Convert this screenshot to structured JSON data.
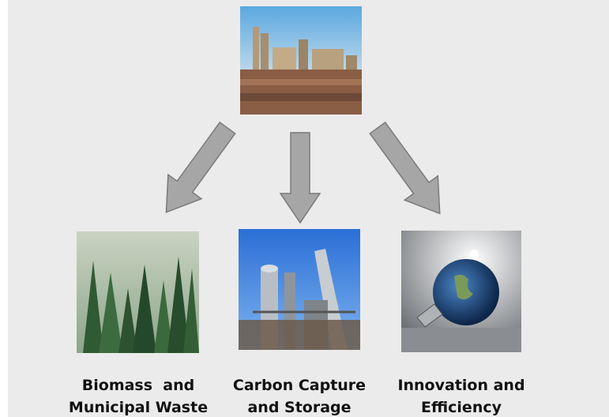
{
  "nodes": [
    {
      "label_lines": [
        "Biomass  and",
        "Municipal Waste"
      ]
    },
    {
      "label_lines": [
        "Carbon Capture",
        "and Storage"
      ]
    },
    {
      "label_lines": [
        "Innovation and",
        "Efficiency"
      ]
    }
  ]
}
